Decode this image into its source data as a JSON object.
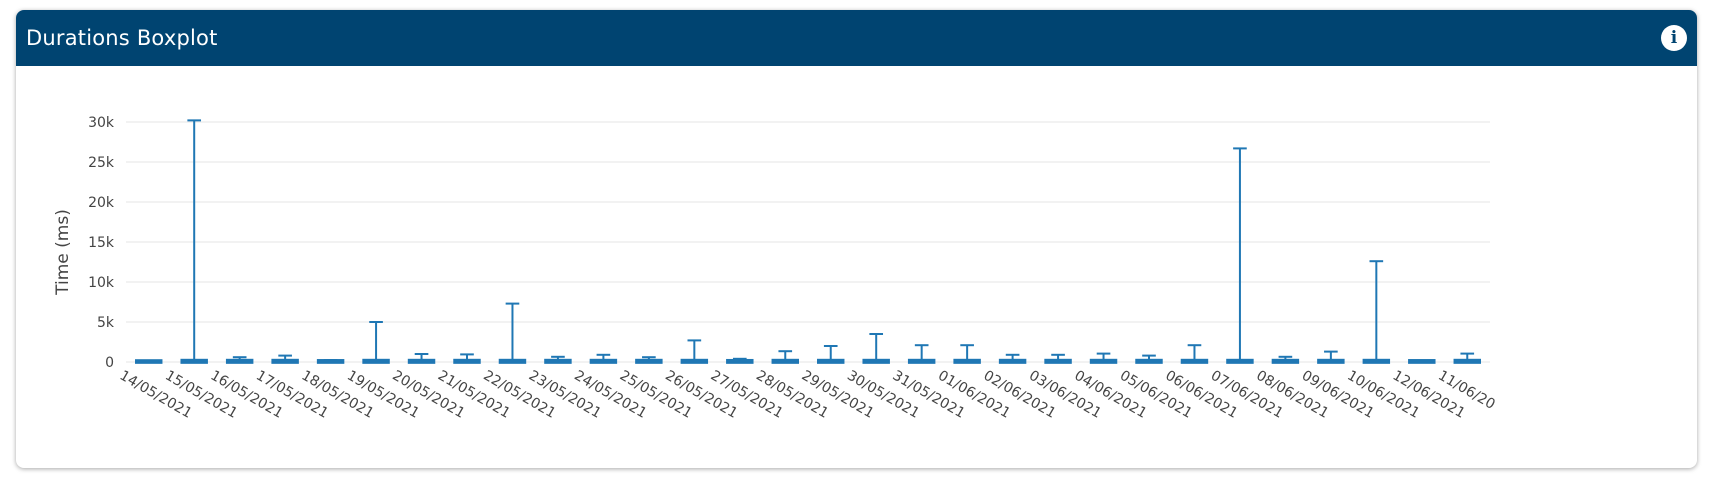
{
  "header": {
    "title": "Durations Boxplot",
    "info_icon": "info-icon"
  },
  "colors": {
    "header_bg": "#004471",
    "series": "#1f77b4",
    "grid": "#e6e6e6"
  },
  "chart_data": {
    "type": "box",
    "title": "",
    "xlabel": "",
    "ylabel": "Time (ms)",
    "ylim": [
      0,
      31000
    ],
    "y_ticks": [
      0,
      5000,
      10000,
      15000,
      20000,
      25000,
      30000
    ],
    "y_tick_labels": [
      "0",
      "5k",
      "10k",
      "15k",
      "20k",
      "25k",
      "30k"
    ],
    "grid": true,
    "legend": "none",
    "categories": [
      "14/05/2021",
      "15/05/2021",
      "16/05/2021",
      "17/05/2021",
      "18/05/2021",
      "19/05/2021",
      "20/05/2021",
      "21/05/2021",
      "22/05/2021",
      "23/05/2021",
      "24/05/2021",
      "25/05/2021",
      "26/05/2021",
      "27/05/2021",
      "28/05/2021",
      "29/05/2021",
      "30/05/2021",
      "31/05/2021",
      "01/06/2021",
      "02/06/2021",
      "03/06/2021",
      "04/06/2021",
      "05/06/2021",
      "06/06/2021",
      "07/06/2021",
      "08/06/2021",
      "09/06/2021",
      "10/06/2021",
      "12/06/2021",
      "11/06/20"
    ],
    "upper_whisker": [
      150,
      30200,
      600,
      800,
      250,
      5000,
      1000,
      950,
      7300,
      650,
      900,
      600,
      2700,
      400,
      1350,
      2000,
      3500,
      2100,
      2100,
      900,
      900,
      1050,
      800,
      2100,
      26700,
      650,
      1300,
      12600,
      150,
      1050
    ],
    "q3": [
      100,
      150,
      150,
      150,
      120,
      150,
      150,
      150,
      150,
      150,
      150,
      150,
      150,
      130,
      150,
      150,
      150,
      150,
      150,
      150,
      150,
      150,
      150,
      150,
      150,
      150,
      150,
      150,
      120,
      150
    ],
    "median": [
      50,
      60,
      60,
      60,
      50,
      60,
      60,
      60,
      60,
      60,
      60,
      60,
      60,
      50,
      60,
      60,
      60,
      60,
      60,
      60,
      60,
      60,
      60,
      60,
      60,
      60,
      60,
      60,
      50,
      60
    ],
    "q1": [
      20,
      20,
      20,
      20,
      20,
      20,
      20,
      20,
      20,
      20,
      20,
      20,
      20,
      20,
      20,
      20,
      20,
      20,
      20,
      20,
      20,
      20,
      20,
      20,
      20,
      20,
      20,
      20,
      20,
      20
    ],
    "lower_whisker": [
      0,
      0,
      0,
      0,
      0,
      0,
      0,
      0,
      0,
      0,
      0,
      0,
      0,
      0,
      0,
      0,
      0,
      0,
      0,
      0,
      0,
      0,
      0,
      0,
      0,
      0,
      0,
      0,
      0,
      0
    ]
  }
}
